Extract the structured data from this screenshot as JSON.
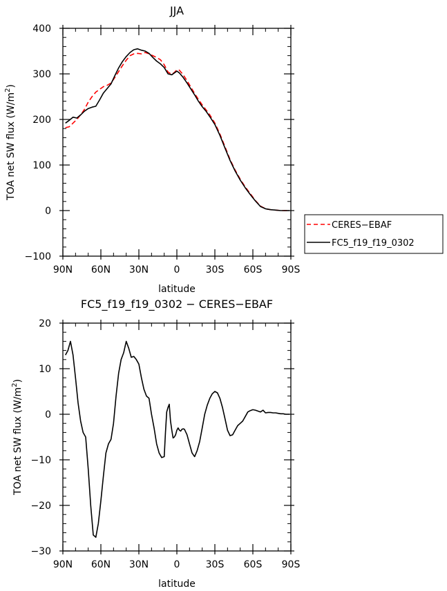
{
  "chart_data": [
    {
      "type": "line",
      "title": "JJA",
      "xlabel": "latitude",
      "ylabel": "TOA net SW flux (W/m2)",
      "ylabel_base": "TOA net SW flux (W/m",
      "ylabel_sup": "2",
      "ylabel_close": ")",
      "x_ticks": [
        -90,
        -60,
        -30,
        0,
        30,
        60,
        90
      ],
      "x_tick_labels": [
        "90N",
        "60N",
        "30N",
        "0",
        "30S",
        "60S",
        "90S"
      ],
      "xlim": [
        -90,
        90
      ],
      "ylim": [
        -100,
        400
      ],
      "y_ticks": [
        -100,
        0,
        100,
        200,
        300,
        400
      ],
      "y_tick_labels": [
        "−100",
        "0",
        "100",
        "200",
        "300",
        "400"
      ],
      "grid": false,
      "legend_position": "outside-right",
      "series": [
        {
          "name": "CERES−EBAF",
          "color": "#ff0000",
          "dash": "dashed",
          "x": [
            -88,
            -85,
            -82,
            -79,
            -76,
            -73,
            -70,
            -67,
            -64,
            -61,
            -58,
            -55,
            -52,
            -49,
            -46,
            -43,
            -40,
            -37,
            -34,
            -31,
            -28,
            -25,
            -22,
            -19,
            -16,
            -13,
            -10,
            -7,
            -4,
            -2,
            0,
            2,
            5,
            8,
            11,
            14,
            17,
            20,
            23,
            26,
            30,
            34,
            38,
            42,
            46,
            50,
            54,
            58,
            62,
            66,
            70,
            74,
            78,
            82,
            86,
            89
          ],
          "y": [
            182,
            184,
            192,
            200,
            210,
            222,
            238,
            250,
            260,
            266,
            272,
            275,
            280,
            292,
            305,
            318,
            330,
            340,
            344,
            345,
            344,
            347,
            344,
            340,
            336,
            331,
            320,
            304,
            299,
            303,
            309,
            308,
            298,
            285,
            271,
            257,
            244,
            232,
            221,
            210,
            192,
            168,
            140,
            112,
            89,
            69,
            52,
            37,
            22,
            10,
            4,
            2,
            1,
            0,
            0,
            0
          ]
        },
        {
          "name": "FC5_f19_f19_0302",
          "color": "#000000",
          "dash": "solid",
          "x": [
            -88,
            -85,
            -82,
            -79,
            -76,
            -73,
            -70,
            -67,
            -64,
            -61,
            -58,
            -55,
            -52,
            -49,
            -46,
            -43,
            -40,
            -37,
            -34,
            -31,
            -28,
            -25,
            -22,
            -19,
            -16,
            -13,
            -10,
            -7,
            -4,
            -2,
            0,
            2,
            5,
            8,
            11,
            14,
            17,
            20,
            23,
            26,
            30,
            34,
            38,
            42,
            46,
            50,
            54,
            58,
            62,
            66,
            70,
            74,
            78,
            82,
            86,
            89
          ],
          "y": [
            192,
            198,
            205,
            203,
            210,
            218,
            224,
            227,
            229,
            243,
            258,
            268,
            278,
            296,
            313,
            327,
            338,
            347,
            353,
            355,
            352,
            350,
            345,
            336,
            328,
            322,
            314,
            300,
            298,
            302,
            306,
            302,
            292,
            280,
            267,
            254,
            240,
            228,
            218,
            206,
            189,
            165,
            137,
            110,
            87,
            67,
            50,
            35,
            21,
            9,
            4,
            2,
            1,
            0,
            0,
            0
          ]
        }
      ]
    },
    {
      "type": "line",
      "title": "FC5_f19_f19_0302 − CERES−EBAF",
      "xlabel": "latitude",
      "ylabel": "TOA net SW flux (W/m2)",
      "ylabel_base": "TOA net SW flux (W/m",
      "ylabel_sup": "2",
      "ylabel_close": ")",
      "x_ticks": [
        -90,
        -60,
        -30,
        0,
        30,
        60,
        90
      ],
      "x_tick_labels": [
        "90N",
        "60N",
        "30N",
        "0",
        "30S",
        "60S",
        "90S"
      ],
      "xlim": [
        -90,
        90
      ],
      "ylim": [
        -30,
        20
      ],
      "y_ticks": [
        -30,
        -20,
        -10,
        0,
        10,
        20
      ],
      "y_tick_labels": [
        "−30",
        "−20",
        "−10",
        "0",
        "10",
        "20"
      ],
      "grid": false,
      "series": [
        {
          "color": "#000000",
          "dash": "solid",
          "x": [
            -88,
            -86,
            -84,
            -82,
            -80,
            -78,
            -76,
            -74,
            -72,
            -70,
            -68,
            -66,
            -64,
            -62,
            -60,
            -58,
            -56,
            -54,
            -52,
            -50,
            -48,
            -46,
            -44,
            -42,
            -40,
            -38,
            -36,
            -34,
            -32,
            -30,
            -28,
            -26,
            -24,
            -22,
            -20,
            -18,
            -16,
            -14,
            -12,
            -10,
            -9,
            -8,
            -7,
            -6,
            -5,
            -4,
            -3,
            -2,
            -1,
            0,
            1,
            2,
            3,
            4,
            5,
            6,
            8,
            10,
            12,
            14,
            16,
            18,
            20,
            22,
            24,
            26,
            28,
            30,
            32,
            34,
            36,
            38,
            40,
            42,
            44,
            46,
            48,
            50,
            52,
            54,
            56,
            58,
            60,
            62,
            64,
            66,
            68,
            70,
            72,
            74,
            76,
            78,
            80,
            82,
            84,
            86,
            88,
            89
          ],
          "y": [
            13,
            14,
            16,
            13,
            8,
            2.5,
            -1.5,
            -4,
            -5,
            -12,
            -20,
            -26.5,
            -27,
            -24,
            -19,
            -13.5,
            -8.5,
            -6.5,
            -5.5,
            -2,
            4,
            9,
            12,
            13.5,
            16,
            14.5,
            12.5,
            12.7,
            12,
            11,
            8,
            5.5,
            4,
            3.5,
            0,
            -3,
            -6.5,
            -8.5,
            -9.5,
            -9.3,
            -4,
            0.5,
            1.5,
            2.2,
            -1.5,
            -3.5,
            -5.2,
            -5,
            -4.5,
            -3.5,
            -3,
            -3.5,
            -3.7,
            -3.3,
            -3.2,
            -3.3,
            -4.5,
            -6.5,
            -8.5,
            -9.3,
            -8,
            -6,
            -3,
            0,
            2,
            3.5,
            4.5,
            5,
            4.7,
            3.5,
            1.5,
            -1,
            -3.5,
            -4.7,
            -4.5,
            -3.5,
            -2.5,
            -2,
            -1.5,
            -0.5,
            0.5,
            0.8,
            1,
            0.9,
            0.7,
            0.5,
            0.9,
            0.3,
            0.4,
            0.4,
            0.3,
            0.3,
            0.2,
            0.1,
            0.1,
            0,
            0,
            0
          ]
        }
      ]
    }
  ]
}
